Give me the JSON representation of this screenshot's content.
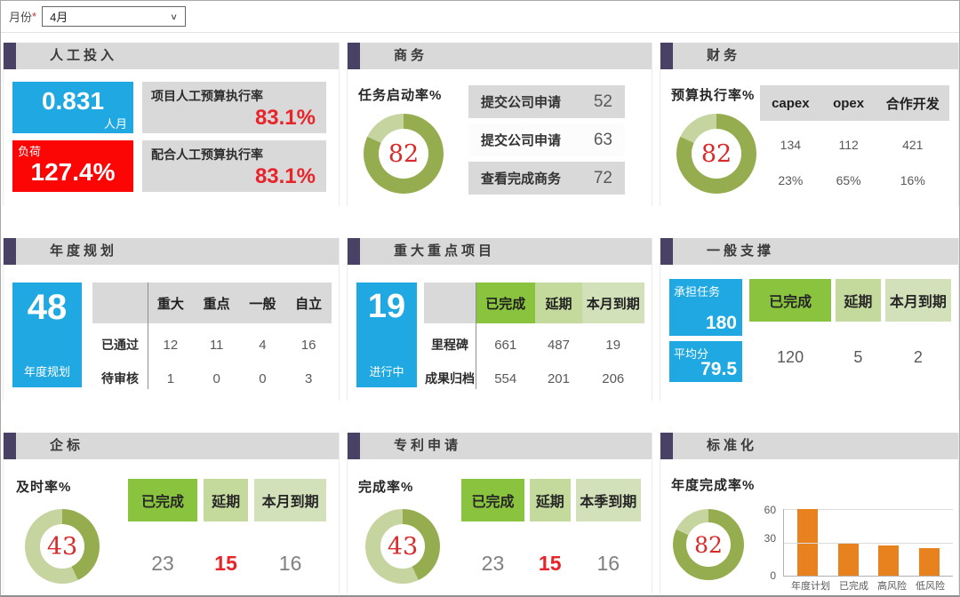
{
  "filter": {
    "label": "月份",
    "required_mark": "*",
    "value": "4月",
    "chevron_icon": "∨"
  },
  "colors": {
    "accent_purple": "#4a4264",
    "header_gray": "#d9d9d9",
    "blue": "#1fa8e1",
    "red": "#fb0505",
    "red_text": "#e8242b",
    "olive_dark": "#96ad4f",
    "olive_light": "#c6d4a0",
    "green_bright": "#8ac43f",
    "green_mid": "#c4da9c",
    "green_light": "#d3e1ba",
    "orange": "#e8821e"
  },
  "panels": {
    "labor": {
      "title": "人工投入",
      "metric_value": "0.831",
      "metric_unit": "人月",
      "load_label": "负荷",
      "load_value": "127.4%",
      "items": [
        {
          "label": "项目人工预算执行率",
          "value": "83.1%"
        },
        {
          "label": "配合人工预算执行率",
          "value": "83.1%"
        }
      ]
    },
    "business": {
      "title": "商务",
      "list": [
        {
          "label": "提交公司申请",
          "value": "52"
        },
        {
          "label": "提交公司申请",
          "value": "63"
        },
        {
          "label": "查看完成商务",
          "value": "72"
        }
      ]
    },
    "finance": {
      "title": "财务",
      "headers": [
        "capex",
        "opex",
        "合作开发"
      ],
      "rows": [
        [
          "134",
          "112",
          "421"
        ],
        [
          "23%",
          "65%",
          "16%"
        ]
      ]
    },
    "annual_plan": {
      "title": "年度规划",
      "card_value": "48",
      "card_label": "年度规划",
      "headers": [
        "重大",
        "重点",
        "一般",
        "自立"
      ],
      "rows": [
        {
          "label": "已通过",
          "values": [
            "12",
            "11",
            "4",
            "16"
          ]
        },
        {
          "label": "待审核",
          "values": [
            "1",
            "0",
            "0",
            "3"
          ]
        }
      ]
    },
    "key_projects": {
      "title": "重大重点项目",
      "card_value": "19",
      "card_label": "进行中",
      "headers": [
        "已完成",
        "延期",
        "本月到期"
      ],
      "rows": [
        {
          "label": "里程碑",
          "values": [
            "661",
            "487",
            "19"
          ]
        },
        {
          "label": "成果归档",
          "values": [
            "554",
            "201",
            "206"
          ]
        }
      ]
    },
    "support": {
      "title": "一般支撑",
      "cards": [
        {
          "label": "承担任务",
          "value": "180"
        },
        {
          "label": "平均分",
          "value": "79.5"
        }
      ],
      "headers": [
        "已完成",
        "延期",
        "本月到期"
      ],
      "values": [
        "120",
        "5",
        "2"
      ]
    },
    "enterprise_std": {
      "title": "企标",
      "headers": [
        "已完成",
        "延期",
        "本月到期"
      ],
      "values": [
        "23",
        "15",
        "16"
      ]
    },
    "patent": {
      "title": "专利申请",
      "headers": [
        "已完成",
        "延期",
        "本季到期"
      ],
      "values": [
        "23",
        "15",
        "16"
      ]
    },
    "standardization": {
      "title": "标准化"
    }
  },
  "chart_data": [
    {
      "type": "donut",
      "panel": "商务",
      "label": "任务启动率%",
      "value": 82,
      "max": 100,
      "colors": {
        "fill": "#96ad4f",
        "rest": "#c6d4a0",
        "number": "#d92b2b"
      }
    },
    {
      "type": "donut",
      "panel": "财务",
      "label": "预算执行率%",
      "value": 82,
      "max": 100
    },
    {
      "type": "donut",
      "panel": "企标",
      "label": "及时率%",
      "value": 43,
      "max": 100
    },
    {
      "type": "donut",
      "panel": "专利申请",
      "label": "完成率%",
      "value": 43,
      "max": 100
    },
    {
      "type": "donut",
      "panel": "标准化",
      "label": "年度完成率%",
      "value": 82,
      "max": 100
    },
    {
      "type": "bar",
      "panel": "标准化",
      "categories": [
        "年度计划",
        "已完成",
        "高风险",
        "低风险"
      ],
      "values": [
        60,
        29,
        27,
        25
      ],
      "ylim": [
        0,
        60
      ],
      "yticks": [
        "60",
        "30",
        "0"
      ],
      "bar_color": "#e8821e",
      "grid": true,
      "legend": false
    }
  ]
}
